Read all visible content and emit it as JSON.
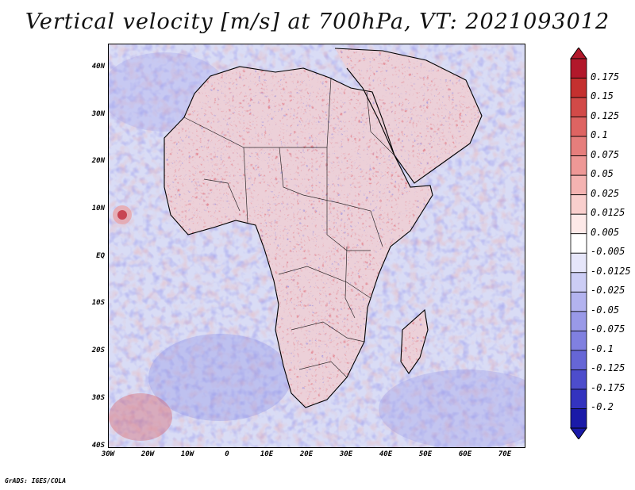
{
  "title": "Vertical velocity [m/s] at 700hPa, VT: 2021093012",
  "footer": "GrADS: IGES/COLA",
  "map": {
    "lat_labels": [
      "40N",
      "30N",
      "20N",
      "10N",
      "EQ",
      "10S",
      "20S",
      "30S",
      "40S"
    ],
    "lon_labels": [
      "30W",
      "20W",
      "10W",
      "0",
      "10E",
      "20E",
      "30E",
      "40E",
      "50E",
      "60E",
      "70E"
    ],
    "lat_range": [
      -40,
      45
    ],
    "lon_range": [
      -30,
      75
    ]
  },
  "colorbar": {
    "labels": [
      "0.175",
      "0.15",
      "0.125",
      "0.1",
      "0.075",
      "0.05",
      "0.025",
      "0.0125",
      "0.005",
      "-0.005",
      "-0.0125",
      "-0.025",
      "-0.05",
      "-0.075",
      "-0.1",
      "-0.125",
      "-0.175",
      "-0.2"
    ],
    "colors": [
      "#b2182b",
      "#c4302f",
      "#d24a48",
      "#de6462",
      "#e67e7c",
      "#ee9896",
      "#f4b3b1",
      "#f9cfcd",
      "#fde9e8",
      "#ffffff",
      "#e6e6fa",
      "#cccdf5",
      "#b3b3ef",
      "#9999e8",
      "#8080e0",
      "#6666d6",
      "#4d4dcc",
      "#3333bf",
      "#1a1aa8"
    ]
  }
}
